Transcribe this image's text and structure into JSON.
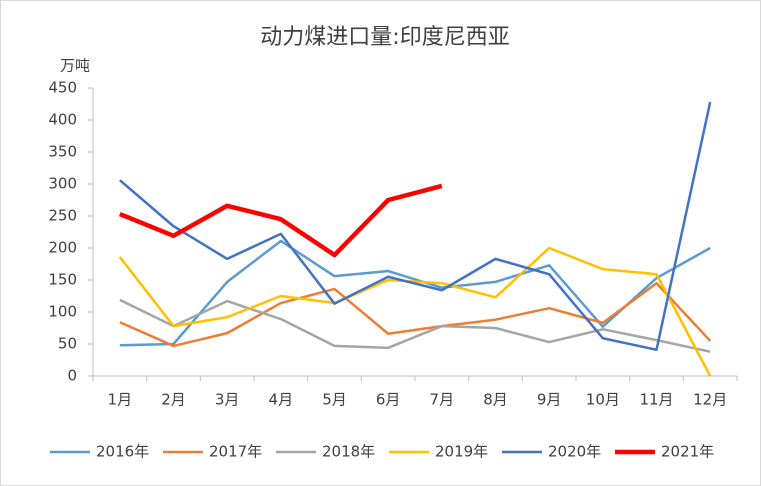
{
  "chart_data": {
    "type": "line",
    "title": "动力煤进口量:印度尼西亚",
    "y_axis_label": "万吨",
    "categories": [
      "1月",
      "2月",
      "3月",
      "4月",
      "5月",
      "6月",
      "7月",
      "8月",
      "9月",
      "10月",
      "11月",
      "12月"
    ],
    "ylim": [
      0,
      450
    ],
    "yticks": [
      0,
      50,
      100,
      150,
      200,
      250,
      300,
      350,
      400,
      450
    ],
    "grid": false,
    "legend": "bottom",
    "series": [
      {
        "name": "2016年",
        "color": "#5b9bd5",
        "width": 2.5,
        "values": [
          48,
          50,
          147,
          211,
          156,
          164,
          138,
          147,
          173,
          77,
          153,
          200
        ]
      },
      {
        "name": "2017年",
        "color": "#ed7d31",
        "width": 2.5,
        "values": [
          84,
          47,
          67,
          114,
          136,
          66,
          78,
          88,
          106,
          83,
          145,
          55
        ]
      },
      {
        "name": "2018年",
        "color": "#a5a5a5",
        "width": 2.5,
        "values": [
          119,
          78,
          117,
          89,
          47,
          44,
          78,
          75,
          53,
          73,
          56,
          38
        ]
      },
      {
        "name": "2019年",
        "color": "#ffc000",
        "width": 2.5,
        "values": [
          186,
          78,
          92,
          125,
          114,
          150,
          145,
          123,
          200,
          167,
          159,
          0
        ]
      },
      {
        "name": "2020年",
        "color": "#4472c4",
        "width": 2.5,
        "values": [
          306,
          234,
          183,
          222,
          113,
          155,
          134,
          183,
          159,
          59,
          41,
          428
        ]
      },
      {
        "name": "2021年",
        "color": "#ff0000",
        "width": 4.5,
        "values": [
          253,
          219,
          266,
          245,
          189,
          275,
          297,
          null,
          null,
          null,
          null,
          null
        ]
      }
    ]
  }
}
